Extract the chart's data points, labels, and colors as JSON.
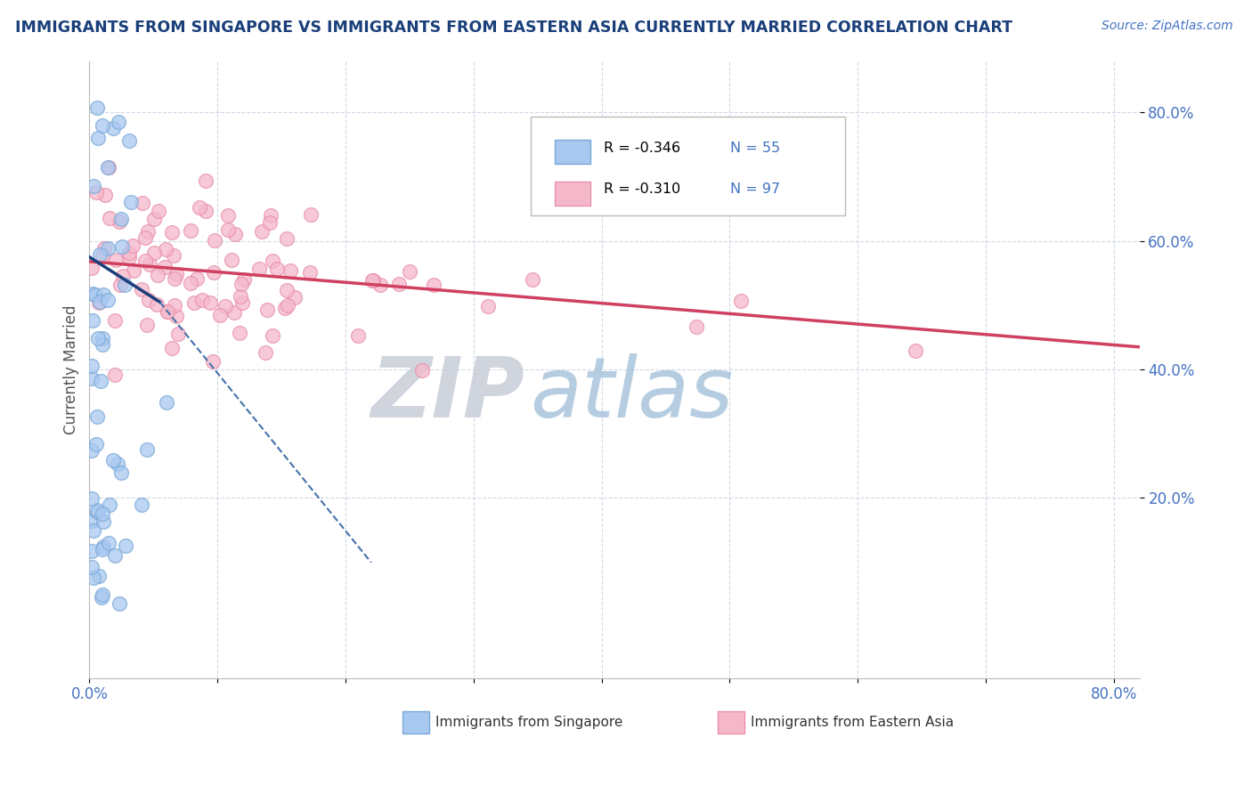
{
  "title": "IMMIGRANTS FROM SINGAPORE VS IMMIGRANTS FROM EASTERN ASIA CURRENTLY MARRIED CORRELATION CHART",
  "source": "Source: ZipAtlas.com",
  "ylabel": "Currently Married",
  "xlim": [
    0.0,
    0.82
  ],
  "ylim": [
    -0.08,
    0.88
  ],
  "legend_R_singapore": "-0.346",
  "legend_N_singapore": "55",
  "legend_R_eastern": "-0.310",
  "legend_N_eastern": "97",
  "color_singapore_fill": "#a8c8f0",
  "color_singapore_edge": "#7aaad8",
  "color_eastern_fill": "#f5b8cb",
  "color_eastern_edge": "#e890aa",
  "color_line_singapore_solid": "#1a3f7a",
  "color_line_singapore_dash": "#4472aa",
  "color_line_eastern": "#d04060",
  "color_title": "#1a3f7a",
  "color_source": "#4472c4",
  "color_legend_text_R": "#000000",
  "color_legend_text_N": "#4472c4",
  "color_axis_ticks": "#4472c4",
  "color_grid": "#d0d8e8",
  "color_watermark_zip": "#c8cdd8",
  "color_watermark_atlas": "#a8c4dc",
  "ytick_vals": [
    0.2,
    0.4,
    0.6,
    0.8
  ],
  "ytick_labels": [
    "20.0%",
    "40.0%",
    "60.0%",
    "80.0%"
  ],
  "xtick_vals": [
    0.0,
    0.1,
    0.2,
    0.3,
    0.4,
    0.5,
    0.6,
    0.7,
    0.8
  ],
  "sg_line_x0": 0.0,
  "sg_line_y0": 0.575,
  "sg_line_solid_x1": 0.055,
  "sg_line_solid_y1": 0.505,
  "sg_line_dash_x2": 0.22,
  "sg_line_dash_y2": 0.1,
  "ea_line_x0": 0.0,
  "ea_line_y0": 0.568,
  "ea_line_x1": 0.82,
  "ea_line_y1": 0.435
}
